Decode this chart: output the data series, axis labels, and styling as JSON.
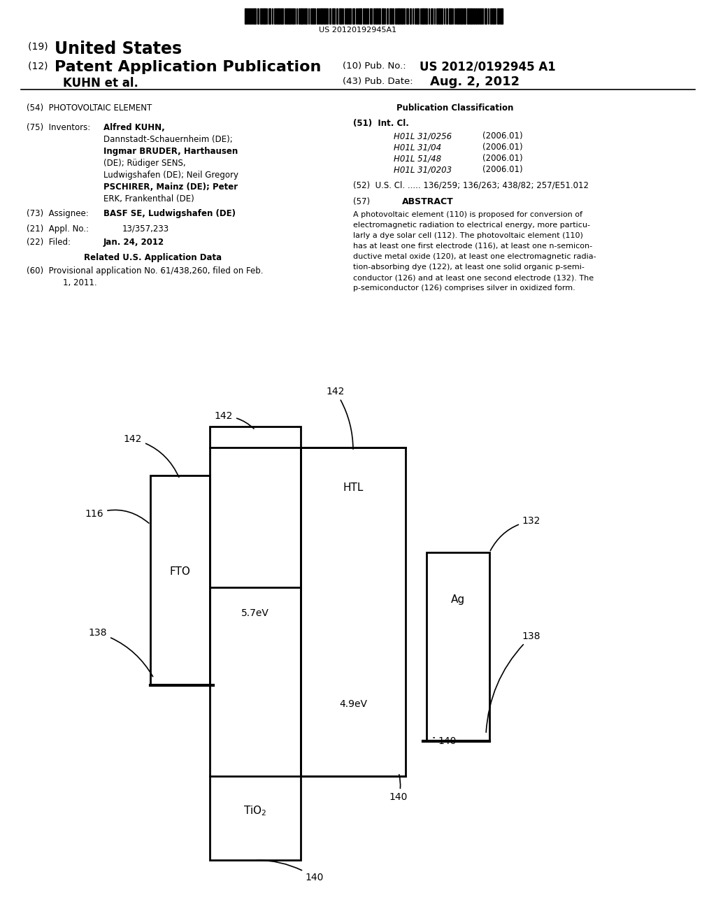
{
  "bg_color": "#ffffff",
  "barcode_text": "US 20120192945A1",
  "int_cl_items": [
    [
      "H01L 31/0256",
      "(2006.01)"
    ],
    [
      "H01L 31/04",
      "(2006.01)"
    ],
    [
      "H01L 51/48",
      "(2006.01)"
    ],
    [
      "H01L 31/0203",
      "(2006.01)"
    ]
  ],
  "abstract_text": "A photovoltaic element (110) is proposed for conversion of\nelectromagnetic radiation to electrical energy, more particu-\nlarly a dye solar cell (112). The photovoltaic element (110)\nhas at least one first electrode (116), at least one n-semicon-\nductive metal oxide (120), at least one electromagnetic radia-\ntion-absorbing dye (122), at least one solid organic p-semi-\nconductor (126) and at least one second electrode (132). The\np-semiconductor (126) comprises silver in oxidized form."
}
